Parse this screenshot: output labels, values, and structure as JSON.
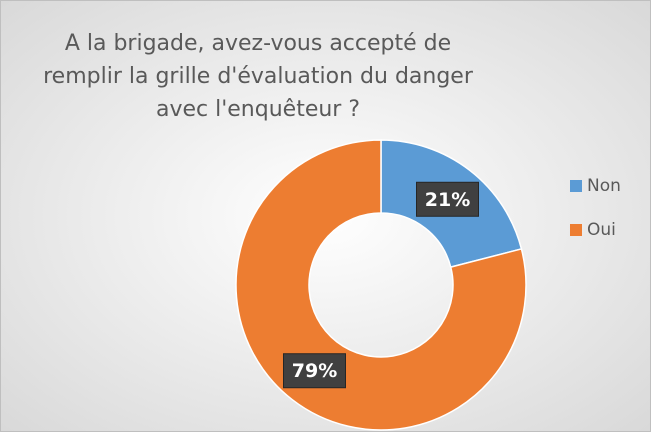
{
  "chart_data": {
    "type": "donut",
    "title": [
      "A la brigade, avez-vous accepté de",
      "remplir la grille d'évaluation du danger",
      "avec l'enquêteur ?"
    ],
    "categories": [
      "Non",
      "Oui"
    ],
    "values": [
      21,
      79
    ],
    "value_labels": [
      "21%",
      "79%"
    ],
    "colors": [
      "#5b9bd5",
      "#ed7d31"
    ],
    "legend": "right"
  }
}
